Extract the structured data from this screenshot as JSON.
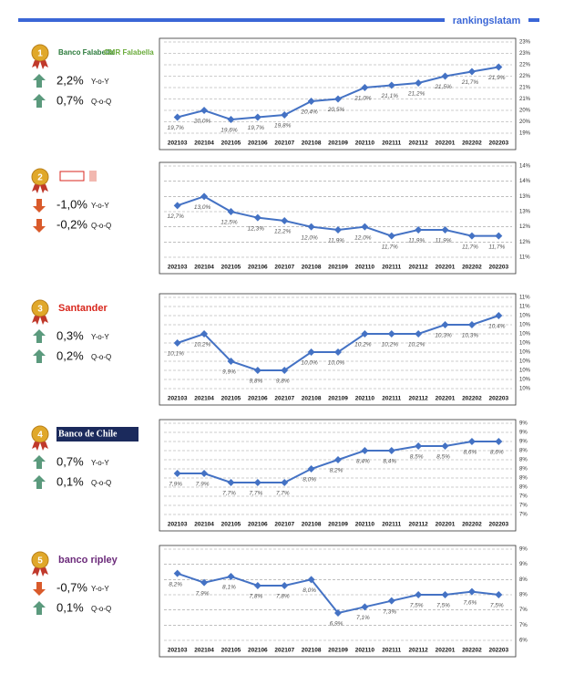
{
  "header": {
    "brand": "rankingslatam"
  },
  "labels": {
    "yoy": "Y-o-Y",
    "qoq": "Q-o-Q"
  },
  "rankings": [
    {
      "rank": "1",
      "logo_text": [
        "Banco Falabella",
        "CMR Falabella"
      ],
      "yoy": "2,2%",
      "qoq": "0,7%"
    },
    {
      "rank": "2",
      "yoy": "-1,0%",
      "qoq": "-0,2%"
    },
    {
      "rank": "3",
      "logo_text": [
        "Santander"
      ],
      "yoy": "0,3%",
      "qoq": "0,2%"
    },
    {
      "rank": "4",
      "logo_text": [
        "Banco de Chile"
      ],
      "yoy": "0,7%",
      "qoq": "0,1%"
    },
    {
      "rank": "5",
      "logo_text": [
        "banco ripley"
      ],
      "yoy": "-0,7%",
      "qoq": "0,1%"
    }
  ],
  "chart_data": [
    {
      "type": "line",
      "color": "#4472c4",
      "grid": true,
      "categories": [
        "202103",
        "202104",
        "202105",
        "202106",
        "202107",
        "202108",
        "202109",
        "202110",
        "202111",
        "202112",
        "202201",
        "202202",
        "202203"
      ],
      "values": [
        19.7,
        20.0,
        19.6,
        19.7,
        19.8,
        20.4,
        20.5,
        21.0,
        21.1,
        21.2,
        21.5,
        21.7,
        21.9
      ],
      "value_labels": [
        "19,7%",
        "20,0%",
        "19,6%",
        "19,7%",
        "19,8%",
        "20,4%",
        "20,5%",
        "21,0%",
        "21,1%",
        "21,2%",
        "21,5%",
        "21,7%",
        "21,9%"
      ],
      "ylim": [
        19,
        23
      ],
      "yticks": [
        {
          "value": 19,
          "label": "19%"
        },
        {
          "value": 19.5,
          "label": "20%"
        },
        {
          "value": 20,
          "label": "20%"
        },
        {
          "value": 20.5,
          "label": "21%"
        },
        {
          "value": 21,
          "label": "21%"
        },
        {
          "value": 21.5,
          "label": "22%"
        },
        {
          "value": 22,
          "label": "22%"
        },
        {
          "value": 22.5,
          "label": "23%"
        },
        {
          "value": 23,
          "label": "23%"
        }
      ]
    },
    {
      "type": "line",
      "color": "#4472c4",
      "grid": true,
      "categories": [
        "202103",
        "202104",
        "202105",
        "202106",
        "202107",
        "202108",
        "202109",
        "202110",
        "202111",
        "202112",
        "202201",
        "202202",
        "202203"
      ],
      "values": [
        12.7,
        13.0,
        12.5,
        12.3,
        12.2,
        12.0,
        11.9,
        12.0,
        11.7,
        11.9,
        11.9,
        11.7,
        11.7
      ],
      "value_labels": [
        "12,7%",
        "13,0%",
        "12,5%",
        "12,3%",
        "12,2%",
        "12,0%",
        "11,9%",
        "12,0%",
        "11,7%",
        "11,9%",
        "11,9%",
        "11,7%",
        "11,7%"
      ],
      "ylim": [
        11,
        14
      ],
      "yticks": [
        {
          "value": 11,
          "label": "11%"
        },
        {
          "value": 11.5,
          "label": "12%"
        },
        {
          "value": 12,
          "label": "12%"
        },
        {
          "value": 12.5,
          "label": "13%"
        },
        {
          "value": 13,
          "label": "13%"
        },
        {
          "value": 13.5,
          "label": "14%"
        },
        {
          "value": 14,
          "label": "14%"
        }
      ]
    },
    {
      "type": "line",
      "color": "#4472c4",
      "grid": true,
      "categories": [
        "202103",
        "202104",
        "202105",
        "202106",
        "202107",
        "202108",
        "202109",
        "202110",
        "202111",
        "202112",
        "202201",
        "202202",
        "202203"
      ],
      "values": [
        10.1,
        10.2,
        9.9,
        9.8,
        9.8,
        10.0,
        10.0,
        10.2,
        10.2,
        10.2,
        10.3,
        10.3,
        10.4
      ],
      "value_labels": [
        "10,1%",
        "10,2%",
        "9,9%",
        "9,8%",
        "9,8%",
        "10,0%",
        "10,0%",
        "10,2%",
        "10,2%",
        "10,2%",
        "10,3%",
        "10,3%",
        "10,4%"
      ],
      "ylim": [
        9.6,
        10.6
      ],
      "yticks": [
        {
          "value": 9.6,
          "label": "10%"
        },
        {
          "value": 9.7,
          "label": "10%"
        },
        {
          "value": 9.8,
          "label": "10%"
        },
        {
          "value": 9.9,
          "label": "10%"
        },
        {
          "value": 10,
          "label": "10%"
        },
        {
          "value": 10.1,
          "label": "10%"
        },
        {
          "value": 10.2,
          "label": "10%"
        },
        {
          "value": 10.3,
          "label": "10%"
        },
        {
          "value": 10.4,
          "label": "10%"
        },
        {
          "value": 10.5,
          "label": "11%"
        },
        {
          "value": 10.6,
          "label": "11%"
        }
      ]
    },
    {
      "type": "line",
      "color": "#4472c4",
      "grid": true,
      "categories": [
        "202103",
        "202104",
        "202105",
        "202106",
        "202107",
        "202108",
        "202109",
        "202110",
        "202111",
        "202112",
        "202201",
        "202202",
        "202203"
      ],
      "values": [
        7.9,
        7.9,
        7.7,
        7.7,
        7.7,
        8.0,
        8.2,
        8.4,
        8.4,
        8.5,
        8.5,
        8.6,
        8.6
      ],
      "value_labels": [
        "7,9%",
        "7,9%",
        "7,7%",
        "7,7%",
        "7,7%",
        "8,0%",
        "8,2%",
        "8,4%",
        "8,4%",
        "8,5%",
        "8,5%",
        "8,6%",
        "8,6%"
      ],
      "ylim": [
        7,
        9
      ],
      "yticks": [
        {
          "value": 7,
          "label": "7%"
        },
        {
          "value": 7.2,
          "label": "7%"
        },
        {
          "value": 7.4,
          "label": "7%"
        },
        {
          "value": 7.6,
          "label": "8%"
        },
        {
          "value": 7.8,
          "label": "8%"
        },
        {
          "value": 8,
          "label": "8%"
        },
        {
          "value": 8.2,
          "label": "8%"
        },
        {
          "value": 8.4,
          "label": "8%"
        },
        {
          "value": 8.6,
          "label": "9%"
        },
        {
          "value": 8.8,
          "label": "9%"
        },
        {
          "value": 9,
          "label": "9%"
        }
      ]
    },
    {
      "type": "line",
      "color": "#4472c4",
      "grid": true,
      "categories": [
        "202103",
        "202104",
        "202105",
        "202106",
        "202107",
        "202108",
        "202109",
        "202110",
        "202111",
        "202112",
        "202201",
        "202202",
        "202203"
      ],
      "values": [
        8.2,
        7.9,
        8.1,
        7.8,
        7.8,
        8.0,
        6.9,
        7.1,
        7.3,
        7.5,
        7.5,
        7.6,
        7.5
      ],
      "value_labels": [
        "8,2%",
        "7,9%",
        "8,1%",
        "7,8%",
        "7,8%",
        "8,0%",
        "6,9%",
        "7,1%",
        "7,3%",
        "7,5%",
        "7,5%",
        "7,6%",
        "7,5%"
      ],
      "ylim": [
        6,
        9
      ],
      "yticks": [
        {
          "value": 6,
          "label": "6%"
        },
        {
          "value": 6.5,
          "label": "7%"
        },
        {
          "value": 7,
          "label": "7%"
        },
        {
          "value": 7.5,
          "label": "8%"
        },
        {
          "value": 8,
          "label": "8%"
        },
        {
          "value": 8.5,
          "label": "9%"
        },
        {
          "value": 9,
          "label": "9%"
        }
      ]
    }
  ]
}
